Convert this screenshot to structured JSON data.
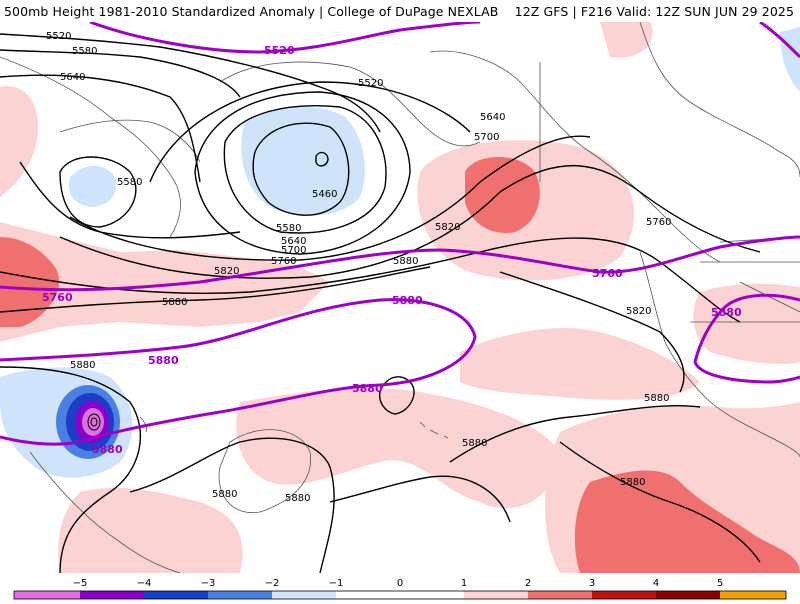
{
  "header": {
    "left": "500mb Height 1981-2010 Standardized Anomaly | College of DuPage NEXLAB",
    "right": "12Z GFS | F216 Valid: 12Z SUN JUN 29 2025"
  },
  "colors": {
    "anomaly_neg5": "#e070e0",
    "anomaly_neg4": "#8800cc",
    "anomaly_neg3": "#1a3ec8",
    "anomaly_neg2": "#4a80e0",
    "anomaly_neg1": "#cfe4fa",
    "anomaly_pos1": "#fcd3d3",
    "anomaly_pos2": "#f07070",
    "anomaly_pos3": "#c01010",
    "anomaly_pos4": "#8a0000",
    "anomaly_pos5": "#f0a000",
    "contour_black": "#000000",
    "contour_purple": "#9e00c8",
    "coastline": "#555555"
  },
  "legend": {
    "ticks": [
      "−5",
      "−4",
      "−3",
      "−2",
      "−1",
      "0",
      "1",
      "2",
      "3",
      "4",
      "5"
    ],
    "tick_values": [
      -5,
      -4,
      -3,
      -2,
      -1,
      0,
      1,
      2,
      3,
      4,
      5
    ]
  },
  "contour_labels": {
    "black": [
      "5520",
      "5580",
      "5640",
      "5520",
      "5640",
      "5700",
      "5580",
      "5460",
      "5580",
      "5640",
      "5700",
      "5760",
      "5820",
      "5820",
      "5880",
      "5880",
      "5760",
      "5820",
      "5880",
      "5880",
      "5880",
      "5880",
      "5880",
      "5880"
    ],
    "purple": [
      "5520",
      "5760",
      "5880",
      "5880",
      "5880",
      "5760",
      "5880",
      "5880"
    ]
  }
}
